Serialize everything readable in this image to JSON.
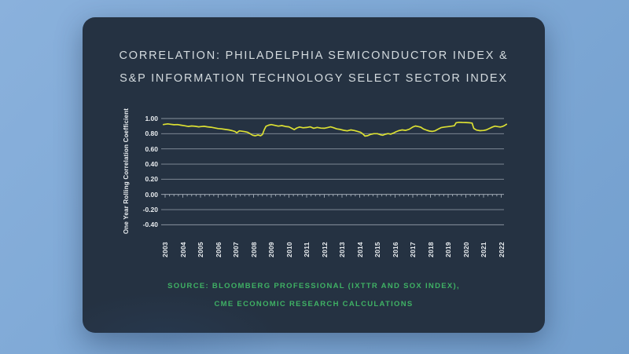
{
  "title": {
    "line1": "CORRELATION: PHILADELPHIA SEMICONDUCTOR INDEX &",
    "line2": "S&P INFORMATION TECHNOLOGY SELECT SECTOR INDEX",
    "color": "#d3dade"
  },
  "source": {
    "line1": "SOURCE: BLOOMBERG PROFESSIONAL (IXTTR AND SOX INDEX),",
    "line2": "CME ECONOMIC RESEARCH CALCULATIONS",
    "color": "#3fb164"
  },
  "colors": {
    "background": "#7fa9d6",
    "card": "#253242",
    "gridline": "#c6cfd8",
    "tick_label": "#e8ecef"
  },
  "chart_data": {
    "type": "line",
    "title": "Correlation: Philadelphia Semiconductor Index & S&P Information Technology Select Sector Index",
    "xlabel": "",
    "ylabel": "One Year Rolling Correlation Coefficient",
    "x_ticks": [
      "2003",
      "2004",
      "2005",
      "2006",
      "2007",
      "2008",
      "2009",
      "2010",
      "2011",
      "2012",
      "2013",
      "2014",
      "2015",
      "2016",
      "2017",
      "2018",
      "2019",
      "2020",
      "2021",
      "2022"
    ],
    "y_ticks": [
      "1.00",
      "0.80",
      "0.60",
      "0.40",
      "0.20",
      "0.00",
      "-0.20",
      "-0.40"
    ],
    "ylim": [
      -0.4,
      1.0
    ],
    "xlim": [
      2002.8,
      2022.5
    ],
    "grid": true,
    "legend": "none",
    "line_color": "#dce033",
    "series": [
      {
        "name": "One Year Rolling Correlation Coefficient",
        "points": [
          [
            2002.9,
            0.92
          ],
          [
            2003.0,
            0.925
          ],
          [
            2003.15,
            0.93
          ],
          [
            2003.3,
            0.924
          ],
          [
            2003.5,
            0.918
          ],
          [
            2003.7,
            0.92
          ],
          [
            2003.9,
            0.912
          ],
          [
            2004.1,
            0.905
          ],
          [
            2004.3,
            0.896
          ],
          [
            2004.5,
            0.902
          ],
          [
            2004.7,
            0.898
          ],
          [
            2004.9,
            0.89
          ],
          [
            2005.0,
            0.893
          ],
          [
            2005.2,
            0.898
          ],
          [
            2005.4,
            0.89
          ],
          [
            2005.6,
            0.885
          ],
          [
            2005.8,
            0.877
          ],
          [
            2006.0,
            0.868
          ],
          [
            2006.2,
            0.864
          ],
          [
            2006.4,
            0.856
          ],
          [
            2006.6,
            0.85
          ],
          [
            2006.8,
            0.84
          ],
          [
            2006.95,
            0.828
          ],
          [
            2007.05,
            0.812
          ],
          [
            2007.2,
            0.838
          ],
          [
            2007.35,
            0.832
          ],
          [
            2007.5,
            0.827
          ],
          [
            2007.65,
            0.82
          ],
          [
            2007.8,
            0.8
          ],
          [
            2007.95,
            0.78
          ],
          [
            2008.1,
            0.772
          ],
          [
            2008.25,
            0.784
          ],
          [
            2008.4,
            0.774
          ],
          [
            2008.5,
            0.79
          ],
          [
            2008.6,
            0.85
          ],
          [
            2008.7,
            0.898
          ],
          [
            2008.85,
            0.912
          ],
          [
            2009.0,
            0.92
          ],
          [
            2009.2,
            0.91
          ],
          [
            2009.4,
            0.9
          ],
          [
            2009.6,
            0.907
          ],
          [
            2009.8,
            0.896
          ],
          [
            2010.0,
            0.89
          ],
          [
            2010.15,
            0.872
          ],
          [
            2010.3,
            0.854
          ],
          [
            2010.45,
            0.876
          ],
          [
            2010.6,
            0.888
          ],
          [
            2010.8,
            0.878
          ],
          [
            2011.0,
            0.882
          ],
          [
            2011.2,
            0.89
          ],
          [
            2011.4,
            0.872
          ],
          [
            2011.6,
            0.883
          ],
          [
            2011.8,
            0.874
          ],
          [
            2012.0,
            0.872
          ],
          [
            2012.2,
            0.882
          ],
          [
            2012.35,
            0.89
          ],
          [
            2012.5,
            0.88
          ],
          [
            2012.7,
            0.864
          ],
          [
            2012.9,
            0.856
          ],
          [
            2013.1,
            0.845
          ],
          [
            2013.3,
            0.838
          ],
          [
            2013.5,
            0.85
          ],
          [
            2013.7,
            0.842
          ],
          [
            2013.9,
            0.828
          ],
          [
            2014.05,
            0.818
          ],
          [
            2014.2,
            0.792
          ],
          [
            2014.3,
            0.768
          ],
          [
            2014.45,
            0.774
          ],
          [
            2014.6,
            0.79
          ],
          [
            2014.8,
            0.8
          ],
          [
            2015.0,
            0.8
          ],
          [
            2015.15,
            0.788
          ],
          [
            2015.3,
            0.78
          ],
          [
            2015.45,
            0.793
          ],
          [
            2015.6,
            0.801
          ],
          [
            2015.75,
            0.794
          ],
          [
            2015.9,
            0.808
          ],
          [
            2016.05,
            0.825
          ],
          [
            2016.2,
            0.84
          ],
          [
            2016.4,
            0.85
          ],
          [
            2016.6,
            0.844
          ],
          [
            2016.8,
            0.858
          ],
          [
            2017.0,
            0.888
          ],
          [
            2017.15,
            0.902
          ],
          [
            2017.3,
            0.895
          ],
          [
            2017.45,
            0.886
          ],
          [
            2017.6,
            0.862
          ],
          [
            2017.8,
            0.845
          ],
          [
            2017.95,
            0.835
          ],
          [
            2018.1,
            0.83
          ],
          [
            2018.25,
            0.838
          ],
          [
            2018.4,
            0.856
          ],
          [
            2018.6,
            0.88
          ],
          [
            2018.8,
            0.888
          ],
          [
            2019.0,
            0.893
          ],
          [
            2019.2,
            0.9
          ],
          [
            2019.35,
            0.905
          ],
          [
            2019.45,
            0.944
          ],
          [
            2019.6,
            0.95
          ],
          [
            2019.8,
            0.948
          ],
          [
            2020.0,
            0.947
          ],
          [
            2020.2,
            0.944
          ],
          [
            2020.35,
            0.94
          ],
          [
            2020.45,
            0.87
          ],
          [
            2020.6,
            0.848
          ],
          [
            2020.8,
            0.84
          ],
          [
            2021.0,
            0.843
          ],
          [
            2021.15,
            0.85
          ],
          [
            2021.3,
            0.866
          ],
          [
            2021.5,
            0.888
          ],
          [
            2021.65,
            0.9
          ],
          [
            2021.8,
            0.894
          ],
          [
            2021.95,
            0.888
          ],
          [
            2022.1,
            0.898
          ],
          [
            2022.2,
            0.91
          ],
          [
            2022.3,
            0.924
          ]
        ]
      }
    ]
  }
}
